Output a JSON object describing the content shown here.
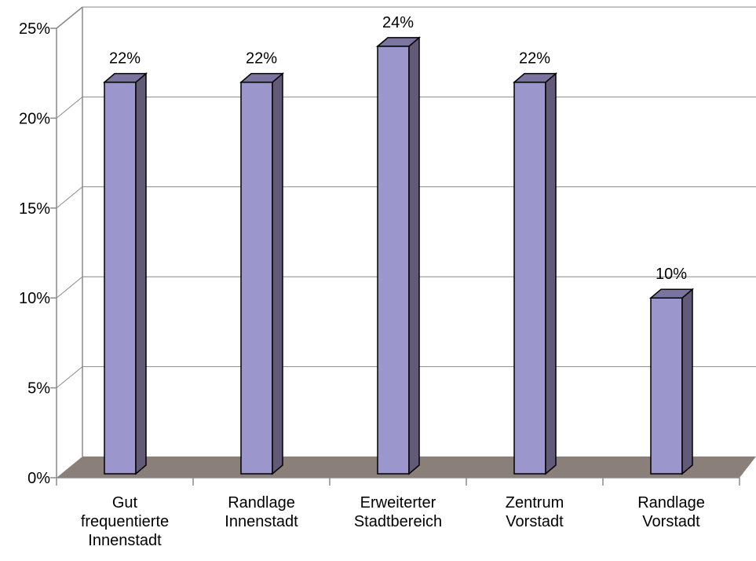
{
  "chart_data": {
    "type": "bar",
    "categories": [
      [
        "Gut",
        "frequentierte",
        "Innenstadt"
      ],
      [
        "Randlage",
        "Innenstadt"
      ],
      [
        "Erweiterter",
        "Stadtbereich"
      ],
      [
        "Zentrum",
        "Vorstadt"
      ],
      [
        "Randlage",
        "Vorstadt"
      ]
    ],
    "values": [
      22,
      22,
      24,
      22,
      10
    ],
    "value_labels": [
      "22%",
      "22%",
      "24%",
      "22%",
      "10%"
    ],
    "yticks": [
      "0%",
      "5%",
      "10%",
      "15%",
      "20%",
      "25%"
    ],
    "ylim": [
      0,
      25
    ],
    "grid": true,
    "colors": {
      "bar_front": "#9b96cc",
      "bar_side": "#635a78",
      "bar_top": "#7b73a0",
      "floor": "#8b7f7a",
      "axis": "#8a8a8a",
      "grid": "#8a8a8a"
    }
  }
}
